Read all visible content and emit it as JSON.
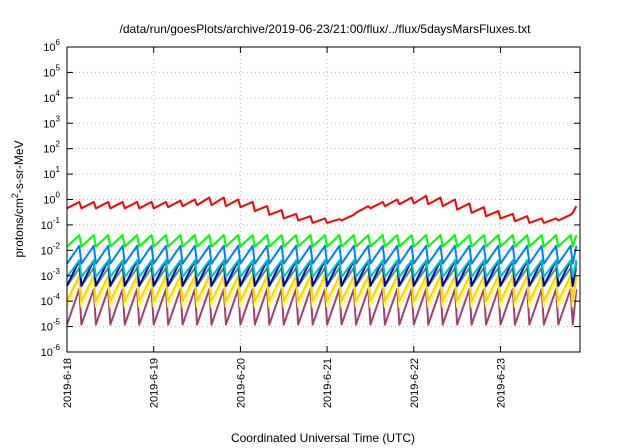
{
  "chart_data": {
    "type": "line",
    "title": "/data/run/goesPlots/archive/2019-06-23/21:00/flux/../flux/5daysMarsFluxes.txt",
    "xlabel": "Coordinated Universal Time (UTC)",
    "ylabel_parts": {
      "base": "protons/cm",
      "sup": "2",
      "rest": "-s-sr-MeV"
    },
    "xlim": [
      "2019-06-18",
      "2019-06-23 21:00"
    ],
    "ylim": [
      1e-06,
      1000000.0
    ],
    "yscale": "log",
    "grid": true,
    "x_ticks": [
      "2019-6-18",
      "2019-6-19",
      "2019-6-20",
      "2019-6-21",
      "2019-6-22",
      "2019-6-23"
    ],
    "y_ticks": [
      {
        "base": "10",
        "exp": "-6"
      },
      {
        "base": "10",
        "exp": "-5"
      },
      {
        "base": "10",
        "exp": "-4"
      },
      {
        "base": "10",
        "exp": "-3"
      },
      {
        "base": "10",
        "exp": "-2"
      },
      {
        "base": "10",
        "exp": "-1"
      },
      {
        "base": "10",
        "exp": "0"
      },
      {
        "base": "10",
        "exp": "1"
      },
      {
        "base": "10",
        "exp": "2"
      },
      {
        "base": "10",
        "exp": "3"
      },
      {
        "base": "10",
        "exp": "4"
      },
      {
        "base": "10",
        "exp": "5"
      },
      {
        "base": "10",
        "exp": "6"
      }
    ],
    "sawtooth_period_hours": 4,
    "series": [
      {
        "color": "#ff0000",
        "low": [
          0.45,
          0.45,
          0.45,
          0.45,
          0.45,
          0.45,
          0.45,
          0.5,
          0.55,
          0.6,
          0.6,
          0.55,
          0.5,
          0.35,
          0.25,
          0.18,
          0.15,
          0.12,
          0.12,
          0.15,
          0.3,
          0.45,
          0.55,
          0.65,
          0.7,
          0.65,
          0.55,
          0.4,
          0.3,
          0.22,
          0.18,
          0.14,
          0.12,
          0.12,
          0.15,
          0.3,
          0.5,
          0.6,
          0.65,
          0.6,
          0.55,
          0.4,
          0.3,
          0.22,
          0.17,
          0.14,
          0.12,
          0.12,
          0.15,
          0.3,
          0.5,
          0.6,
          0.65,
          0.6,
          0.5,
          0.38,
          0.28,
          0.2,
          0.15,
          0.12,
          0.12,
          0.12,
          0.15,
          0.3,
          0.5,
          0.6,
          0.6,
          0.55,
          0.45,
          0.35,
          0.25,
          0.18,
          0.14,
          0.12,
          0.12,
          0.12,
          0.15,
          0.3,
          0.5
        ],
        "high": [
          0.8,
          0.8,
          0.8,
          0.8,
          0.8,
          0.8,
          0.8,
          0.9,
          1.0,
          1.2,
          1.2,
          1.0,
          0.8,
          0.55,
          0.38,
          0.27,
          0.22,
          0.18,
          0.17,
          0.25,
          0.55,
          0.8,
          1.0,
          1.2,
          1.4,
          1.2,
          1.0,
          0.7,
          0.5,
          0.35,
          0.27,
          0.22,
          0.18,
          0.18,
          0.25,
          0.55,
          0.9,
          1.1,
          1.2,
          1.1,
          1.0,
          0.7,
          0.5,
          0.35,
          0.27,
          0.21,
          0.18,
          0.18,
          0.25,
          0.55,
          0.9,
          1.1,
          1.2,
          1.1,
          0.9,
          0.65,
          0.45,
          0.32,
          0.24,
          0.2,
          0.18,
          0.18,
          0.25,
          0.55,
          0.9,
          1.1,
          1.1,
          1.0,
          0.8,
          0.6,
          0.42,
          0.3,
          0.22,
          0.19,
          0.18,
          0.18,
          0.25,
          0.55,
          0.7
        ]
      },
      {
        "color": "#00ff00",
        "low": [
          0.014
        ],
        "high": [
          0.04
        ]
      },
      {
        "color": "#0080ff",
        "low": [
          0.003
        ],
        "high": [
          0.015
        ]
      },
      {
        "color": "#00c0c0",
        "low": [
          0.0009
        ],
        "high": [
          0.004
        ]
      },
      {
        "color": "#0000c0",
        "low": [
          0.0004
        ],
        "high": [
          0.004
        ]
      },
      {
        "color": "#40a060",
        "low": [
          0.0004
        ],
        "high": [
          0.002
        ]
      },
      {
        "color": "#ffd000",
        "low": [
          0.0001
        ],
        "high": [
          0.001
        ]
      },
      {
        "color": "#ffff60",
        "low": [
          6e-05
        ],
        "high": [
          0.0007
        ]
      },
      {
        "color": "#a04070",
        "low": [
          1.2e-05
        ],
        "high": [
          0.0003
        ]
      }
    ]
  }
}
